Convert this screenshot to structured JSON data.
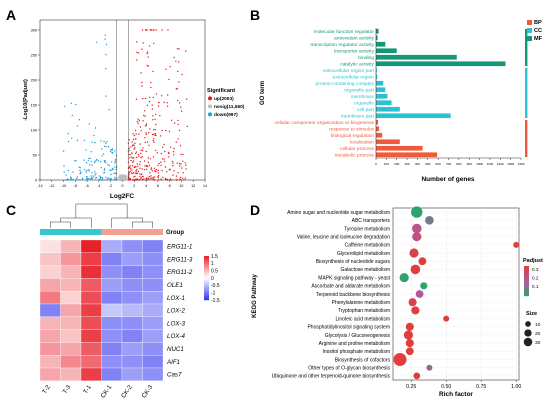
{
  "colors": {
    "up": "#e41a1c",
    "nosig": "#bdbdbd",
    "down": "#1f9ed8",
    "bp": "#f05a3a",
    "cc": "#2cc0d1",
    "mf": "#149678",
    "heat_high": "#e8202a",
    "heat_mid": "#ffffff",
    "heat_low": "#2b2ff0",
    "group_t": "#35c8cf",
    "group_ck": "#f2a08f",
    "bubble_low": "#2ea36f",
    "bubble_mid": "#b05aa0",
    "bubble_high": "#e03d3d"
  },
  "panels": {
    "a": "A",
    "b": "B",
    "c": "C",
    "d": "D"
  },
  "chart_data": [
    {
      "id": "volcano",
      "type": "scatter",
      "xlabel": "Log2FC",
      "ylabel": "-Log10(Padjust)",
      "xlim": [
        -14,
        14
      ],
      "ylim": [
        0,
        320
      ],
      "xticks": [
        "-14",
        "-12",
        "-10",
        "-8",
        "-6",
        "-4",
        "-2",
        "0",
        "2",
        "4",
        "6",
        "8",
        "10",
        "12",
        "14"
      ],
      "xtick_values": [
        -14,
        -12,
        -10,
        -8,
        -6,
        -4,
        -2,
        0,
        2,
        4,
        6,
        8,
        10,
        12,
        14
      ],
      "yticks": [
        "0",
        "50",
        "100",
        "150",
        "200",
        "250",
        "300"
      ],
      "ytick_values": [
        0,
        50,
        100,
        150,
        200,
        250,
        300
      ],
      "thresholds": {
        "fc": [
          -1,
          1
        ]
      },
      "legend_title": "Significant",
      "legend": [
        {
          "key": "up",
          "label": "up(2003)"
        },
        {
          "key": "nosig",
          "label": "nosig(11,560)"
        },
        {
          "key": "down",
          "label": "down(997)"
        }
      ],
      "counts": {
        "up": 2003,
        "nosig": 11560,
        "down": 997
      }
    },
    {
      "id": "go",
      "type": "bar",
      "orientation": "horizontal",
      "ylabel": "GO term",
      "xlabel": "Number of genes",
      "xlim": [
        0,
        1400
      ],
      "xticks": [
        "0",
        "100",
        "200",
        "300",
        "400",
        "500",
        "600",
        "700",
        "800",
        "900",
        "1000",
        "1100",
        "1200",
        "1300",
        "1400"
      ],
      "xtick_values": [
        0,
        100,
        200,
        300,
        400,
        500,
        600,
        700,
        800,
        900,
        1000,
        1100,
        1200,
        1300,
        1400
      ],
      "legend": [
        {
          "key": "bp",
          "label": "BP"
        },
        {
          "key": "cc",
          "label": "CC"
        },
        {
          "key": "mf",
          "label": "MF"
        }
      ],
      "terms": [
        {
          "label": "molecular function regulator",
          "value": 25,
          "group": "mf"
        },
        {
          "label": "antioxidant activity",
          "value": 15,
          "group": "mf"
        },
        {
          "label": "transcription regulator activity",
          "value": 90,
          "group": "mf"
        },
        {
          "label": "transporter activity",
          "value": 200,
          "group": "mf"
        },
        {
          "label": "binding",
          "value": 780,
          "group": "mf"
        },
        {
          "label": "catalytic activity",
          "value": 1250,
          "group": "mf"
        },
        {
          "label": "extracellular region part",
          "value": 8,
          "group": "cc"
        },
        {
          "label": "extracellular region",
          "value": 12,
          "group": "cc"
        },
        {
          "label": "protein-containing complex",
          "value": 70,
          "group": "cc"
        },
        {
          "label": "organelle part",
          "value": 90,
          "group": "cc"
        },
        {
          "label": "membrane",
          "value": 110,
          "group": "cc"
        },
        {
          "label": "organelle",
          "value": 150,
          "group": "cc"
        },
        {
          "label": "cell part",
          "value": 230,
          "group": "cc"
        },
        {
          "label": "membrane part",
          "value": 720,
          "group": "cc"
        },
        {
          "label": "cellular component organization or biogenesis",
          "value": 20,
          "group": "bp"
        },
        {
          "label": "response to stimulus",
          "value": 30,
          "group": "bp"
        },
        {
          "label": "biological regulation",
          "value": 60,
          "group": "bp"
        },
        {
          "label": "localization",
          "value": 230,
          "group": "bp"
        },
        {
          "label": "cellular process",
          "value": 450,
          "group": "bp"
        },
        {
          "label": "metabolic process",
          "value": 590,
          "group": "bp"
        }
      ]
    },
    {
      "id": "heatmap",
      "type": "heatmap",
      "group_label": "Group",
      "columns": [
        "T-2",
        "T-3",
        "T-1",
        "CK-1",
        "CK-2",
        "CK-3"
      ],
      "column_groups": [
        "t",
        "t",
        "t",
        "ck",
        "ck",
        "ck"
      ],
      "rows": [
        "ERG11-1",
        "ERG11-3",
        "ERG11-2",
        "OLE1",
        "LOX-1",
        "LOX-2",
        "LOX-3",
        "LOX-4",
        "NUC1",
        "AIF1",
        "Cas7"
      ],
      "values": [
        [
          0.2,
          0.5,
          1.5,
          -0.6,
          -0.8,
          -0.9
        ],
        [
          0.4,
          0.7,
          1.3,
          -0.9,
          -0.7,
          -0.8
        ],
        [
          0.3,
          0.5,
          1.4,
          -0.8,
          -0.9,
          -0.8
        ],
        [
          0.6,
          0.5,
          1.1,
          -0.7,
          -0.8,
          -0.8
        ],
        [
          0.9,
          0.3,
          1.2,
          -0.9,
          -0.8,
          -0.7
        ],
        [
          -0.9,
          0.6,
          1.3,
          -0.4,
          -0.5,
          -0.6
        ],
        [
          0.5,
          0.5,
          1.2,
          -0.8,
          -0.8,
          -0.7
        ],
        [
          0.6,
          0.4,
          1.3,
          -0.8,
          -0.9,
          -0.7
        ],
        [
          0.7,
          0.6,
          1.1,
          -0.9,
          -0.7,
          -0.8
        ],
        [
          0.5,
          0.8,
          1.0,
          -0.8,
          -0.8,
          -0.9
        ],
        [
          0.6,
          0.5,
          1.3,
          -0.9,
          -0.7,
          -0.8
        ]
      ],
      "colorbar_ticks": [
        "1.5",
        "1",
        "0.5",
        "0",
        "-0.5",
        "-1",
        "-1.5"
      ],
      "colorbar_values": [
        1.5,
        1,
        0.5,
        0,
        -0.5,
        -1,
        -1.5
      ],
      "clim": [
        -1.5,
        1.5
      ]
    },
    {
      "id": "kegg",
      "type": "scatter",
      "ylabel": "KEGG Pathway",
      "xlabel": "Rich factor",
      "xlim": [
        0.12,
        1.02
      ],
      "xticks": [
        "0.25",
        "0.50",
        "0.75",
        "1.00"
      ],
      "xtick_values": [
        0.25,
        0.5,
        0.75,
        1.0
      ],
      "padj_label": "Padjust",
      "padj_ticks": [
        "0.3",
        "0.2",
        "0.1"
      ],
      "size_label": "Size",
      "size_ticks": [
        "10",
        "20",
        "30"
      ],
      "size_values": [
        10,
        20,
        30
      ],
      "pathways": [
        {
          "label": "Amino sugar and nucleotide sugar metabolism",
          "rich": 0.29,
          "size": 25,
          "padj": 0.05
        },
        {
          "label": "ABC transporters",
          "rich": 0.38,
          "size": 12,
          "padj": 0.12
        },
        {
          "label": "Tyrosine metabolism",
          "rich": 0.29,
          "size": 16,
          "padj": 0.2
        },
        {
          "label": "Valine, leucine and isoleucine degradation",
          "rich": 0.29,
          "size": 14,
          "padj": 0.22
        },
        {
          "label": "Caffeine metabolism",
          "rich": 1.0,
          "size": 4,
          "padj": 0.3
        },
        {
          "label": "Glycerolipid metabolism",
          "rich": 0.27,
          "size": 14,
          "padj": 0.28
        },
        {
          "label": "Biosynthesis of nucleotide sugars",
          "rich": 0.33,
          "size": 9,
          "padj": 0.3
        },
        {
          "label": "Galactose metabolism",
          "rich": 0.28,
          "size": 16,
          "padj": 0.3
        },
        {
          "label": "MAPK signaling pathway - yeast",
          "rich": 0.2,
          "size": 14,
          "padj": 0.05
        },
        {
          "label": "Ascorbate and aldarate metabolism",
          "rich": 0.34,
          "size": 7,
          "padj": 0.05
        },
        {
          "label": "Terpenoid backbone biosynthesis",
          "rich": 0.31,
          "size": 9,
          "padj": 0.18
        },
        {
          "label": "Phenylalanine metabolism",
          "rich": 0.26,
          "size": 10,
          "padj": 0.28
        },
        {
          "label": "Tryptophan metabolism",
          "rich": 0.28,
          "size": 10,
          "padj": 0.3
        },
        {
          "label": "Linoleic acid metabolism",
          "rich": 0.5,
          "size": 4,
          "padj": 0.3
        },
        {
          "label": "Phosphatidylinositol signaling system",
          "rich": 0.24,
          "size": 10,
          "padj": 0.3
        },
        {
          "label": "Glycolysis / Gluconeogenesis",
          "rich": 0.23,
          "size": 14,
          "padj": 0.3
        },
        {
          "label": "Arginine and proline metabolism",
          "rich": 0.24,
          "size": 10,
          "padj": 0.3
        },
        {
          "label": "Inositol phosphate metabolism",
          "rich": 0.24,
          "size": 9,
          "padj": 0.3
        },
        {
          "label": "Biosynthesis of cofactors",
          "rich": 0.17,
          "size": 35,
          "padj": 0.3
        },
        {
          "label": "Other types of O-glycan biosynthesis",
          "rich": 0.38,
          "size": 4,
          "padj": 0.15
        },
        {
          "label": "Ubiquinone and other terpenoid-quinone biosynthesis",
          "rich": 0.29,
          "size": 6,
          "padj": 0.3
        }
      ]
    }
  ]
}
